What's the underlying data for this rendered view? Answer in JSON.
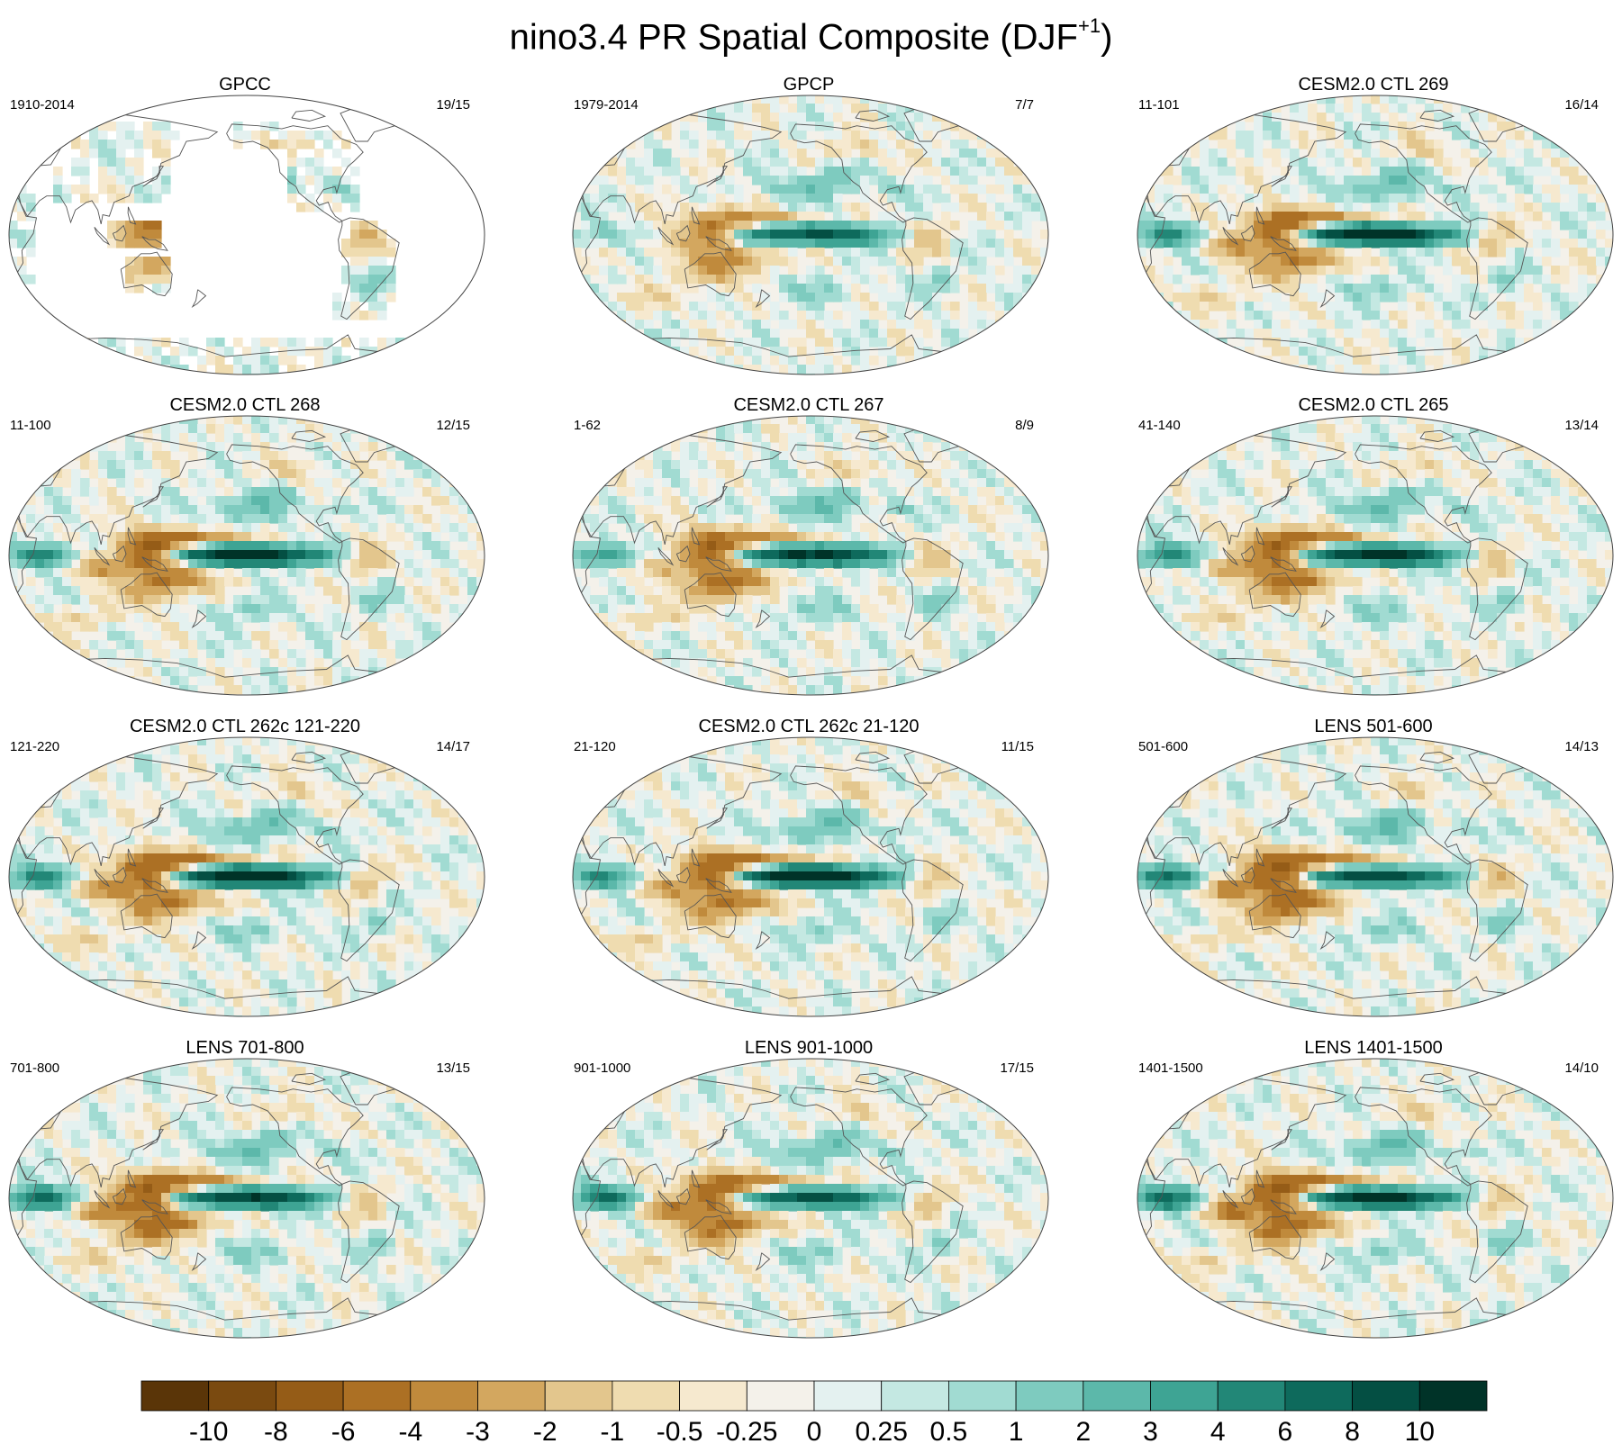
{
  "figure": {
    "title": "nino3.4 PR Spatial Composite (DJF",
    "title_superscript": "+1",
    "title_close": ")"
  },
  "chart_data": {
    "type": "heatmap",
    "title": "nino3.4 PR Spatial Composite (DJF+1)",
    "projection": "Robinson (Pacific-centered global map)",
    "panels": [
      {
        "name": "GPCC",
        "period": "1910-2014",
        "ratio": "19/15",
        "land_only": true
      },
      {
        "name": "GPCP",
        "period": "1979-2014",
        "ratio": "7/7"
      },
      {
        "name": "CESM2.0 CTL 269",
        "period": "11-101",
        "ratio": "16/14"
      },
      {
        "name": "CESM2.0 CTL 268",
        "period": "11-100",
        "ratio": "12/15"
      },
      {
        "name": "CESM2.0 CTL 267",
        "period": "1-62",
        "ratio": "8/9"
      },
      {
        "name": "CESM2.0 CTL 265",
        "period": "41-140",
        "ratio": "13/14"
      },
      {
        "name": "CESM2.0 CTL 262c 121-220",
        "period": "121-220",
        "ratio": "14/17"
      },
      {
        "name": "CESM2.0 CTL 262c 21-120",
        "period": "21-120",
        "ratio": "11/15"
      },
      {
        "name": "LENS 501-600",
        "period": "501-600",
        "ratio": "14/13"
      },
      {
        "name": "LENS 701-800",
        "period": "701-800",
        "ratio": "13/15"
      },
      {
        "name": "LENS 901-1000",
        "period": "901-1000",
        "ratio": "17/15"
      },
      {
        "name": "LENS 1401-1500",
        "period": "1401-1500",
        "ratio": "14/10"
      }
    ],
    "colorbar": {
      "levels": [
        "-10",
        "-8",
        "-6",
        "-4",
        "-3",
        "-2",
        "-1",
        "-0.5",
        "-0.25",
        "0",
        "0.25",
        "0.5",
        "1",
        "2",
        "3",
        "4",
        "6",
        "8",
        "10"
      ],
      "colors": [
        "#5a3508",
        "#7a4a10",
        "#955c17",
        "#ac7024",
        "#c08a3c",
        "#d3a75f",
        "#e3c68d",
        "#efdcb0",
        "#f6e9cf",
        "#f4f1ea",
        "#e4f1f0",
        "#c4e8e2",
        "#a1dbd2",
        "#7ecbbf",
        "#5cb8aa",
        "#3ea494",
        "#228777",
        "#0e6a5c",
        "#044f43",
        "#003328"
      ]
    }
  }
}
